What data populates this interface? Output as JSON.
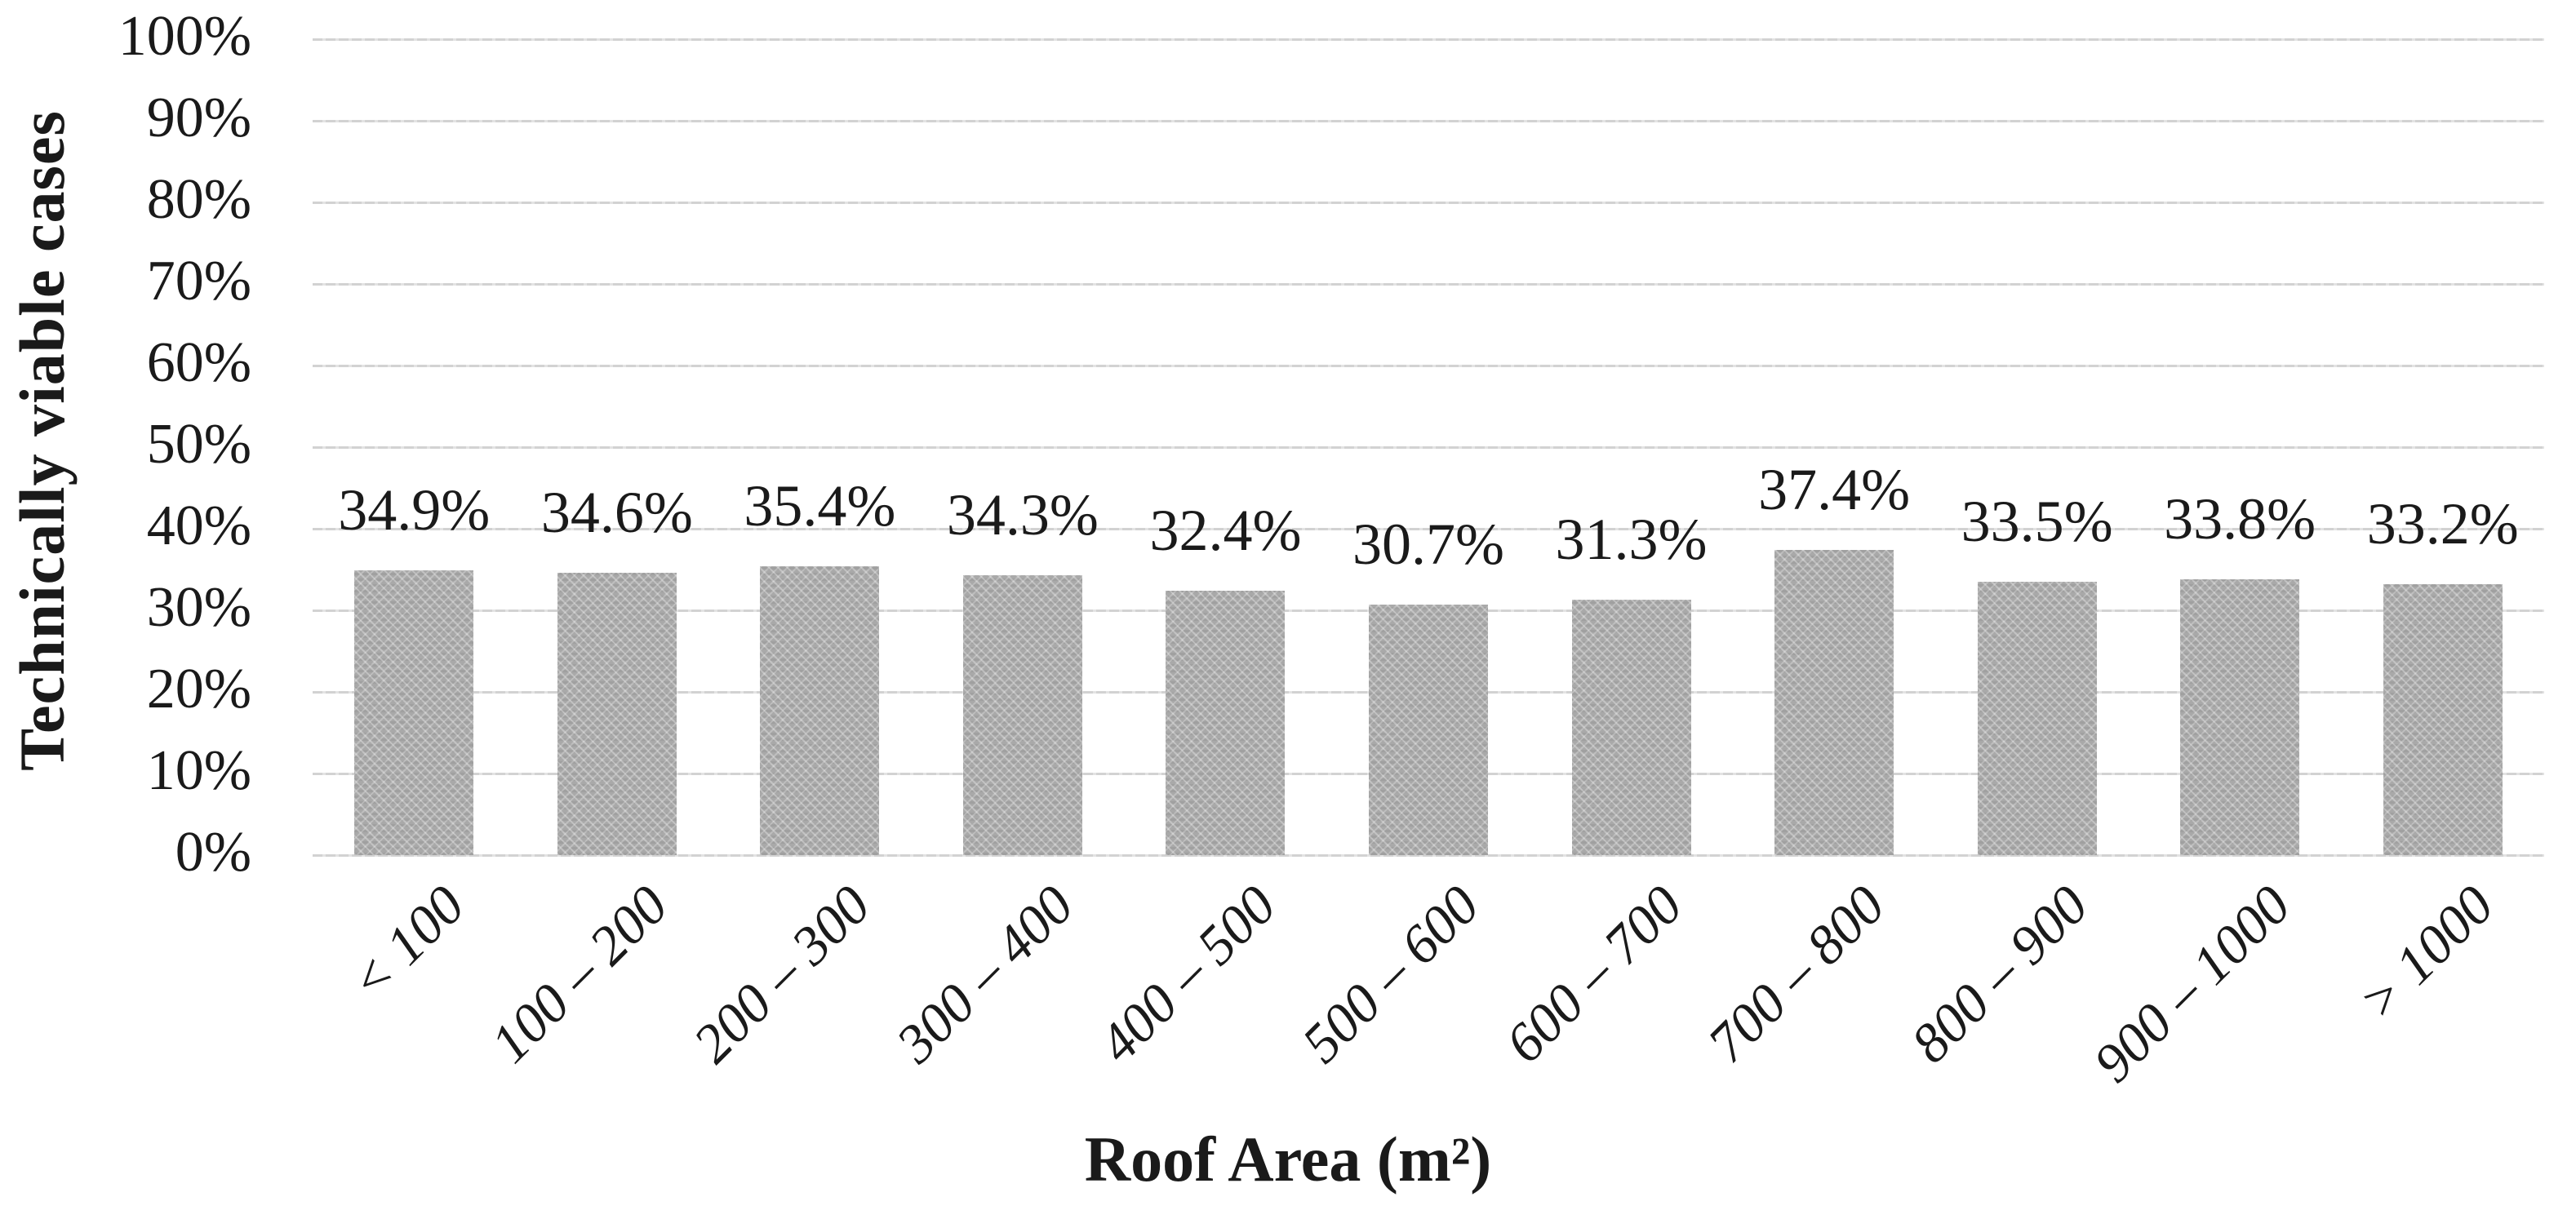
{
  "figure": {
    "background": "#ffffff",
    "text_color": "#1a1a1a"
  },
  "chart_data": {
    "type": "bar",
    "title": "",
    "categories": [
      "< 100",
      "100 – 200",
      "200 – 300",
      "300 – 400",
      "400 – 500",
      "500 – 600",
      "600 – 700",
      "700 – 800",
      "800 – 900",
      "900 – 1000",
      "> 1000"
    ],
    "values": [
      34.9,
      34.6,
      35.4,
      34.3,
      32.4,
      30.7,
      31.3,
      37.4,
      33.5,
      33.8,
      33.2
    ],
    "value_labels": [
      "34.9%",
      "34.6%",
      "35.4%",
      "34.3%",
      "32.4%",
      "30.7%",
      "31.3%",
      "37.4%",
      "33.5%",
      "33.8%",
      "33.2%"
    ],
    "xlabel": "Roof Area (m²)",
    "ylabel": "Technically viable cases",
    "ylim": [
      0,
      100
    ],
    "ytick_step": 10,
    "yticks_top_to_bottom": [
      "100%",
      "90%",
      "80%",
      "70%",
      "60%",
      "50%",
      "40%",
      "30%",
      "20%",
      "10%",
      "0%"
    ],
    "grid": true,
    "legend_position": "none",
    "bar_color": "#a9a9a9",
    "bar_pattern": "diagonal-weave",
    "gridline_color": "#d9d9d9"
  }
}
